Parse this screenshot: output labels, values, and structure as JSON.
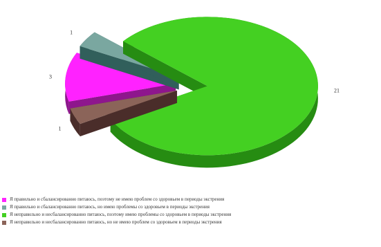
{
  "chart_data": {
    "type": "pie",
    "title": "",
    "legend_position": "bottom",
    "series": [
      {
        "name": "Я правильно и сбалансированно питаюсь, поэтому не имею проблем со здоровьем в периоды экстрения",
        "value": 3,
        "label": "3",
        "color": "#ff22ff",
        "side_color": "#8e168d"
      },
      {
        "name": "Я правильно и сбалансированно питаюсь, но имею проблемы со здоровьем в периоды экстрения",
        "value": 1,
        "label": "1",
        "color": "#7aa7a0",
        "side_color": "#315f5b"
      },
      {
        "name": "Я неправильно и несбалансированно питаюсь, поэтому имею проблемы со здоровьем в периоды экстрения",
        "value": 21,
        "label": "21",
        "color": "#44d022",
        "side_color": "#268c12"
      },
      {
        "name": "Я неправильно и несбалансированно питаюсь, но не имею проблем со здоровьем в периоды экстрения",
        "value": 1,
        "label": "1",
        "color": "#8b6459",
        "side_color": "#4a2d2a"
      }
    ]
  }
}
